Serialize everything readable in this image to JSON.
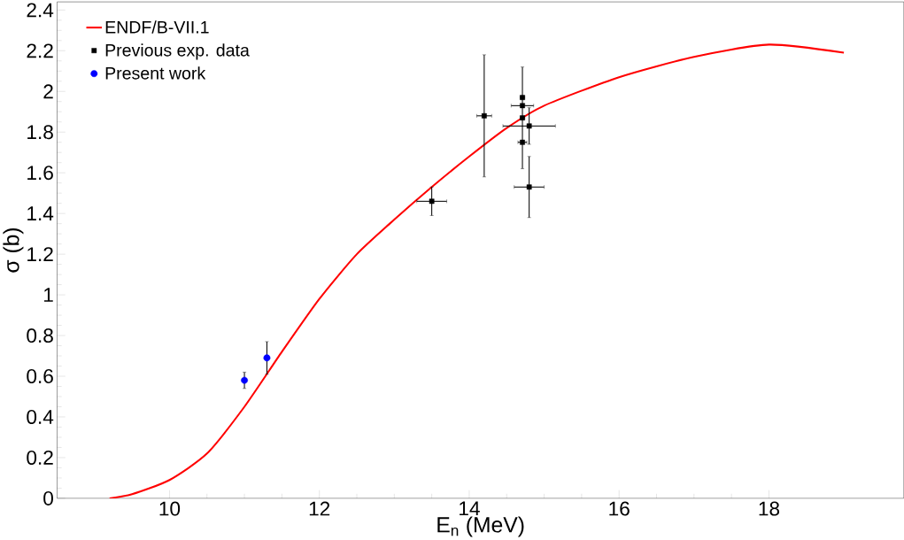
{
  "chart_data": {
    "type": "line",
    "xlabel": "E$_{n}$ (MeV)",
    "ylabel": "σ (b)",
    "xlim": [
      8.5,
      19.8
    ],
    "ylim": [
      0,
      2.44
    ],
    "xticks": [
      10,
      12,
      14,
      16,
      18
    ],
    "yticks": [
      0,
      0.2,
      0.4,
      0.6,
      0.8,
      1,
      1.2,
      1.4,
      1.6,
      1.8,
      2,
      2.2,
      2.4
    ],
    "legend": "top left",
    "grid": false,
    "series": [
      {
        "name": "ENDF/B-VII.1",
        "color": "#ff0000",
        "marker": "none",
        "line_style": "solid",
        "x": [
          9.2,
          9.5,
          10,
          10.5,
          11,
          11.5,
          12,
          12.5,
          13,
          13.5,
          14,
          14.5,
          15,
          16,
          17,
          18,
          19
        ],
        "values": [
          0,
          0.02,
          0.09,
          0.22,
          0.45,
          0.72,
          0.98,
          1.2,
          1.37,
          1.53,
          1.68,
          1.82,
          1.93,
          2.07,
          2.17,
          2.23,
          2.19
        ]
      },
      {
        "name": "Previous exp. data",
        "type": "scatter",
        "color": "#000000",
        "marker": "square",
        "x": [
          13.5,
          14.2,
          14.71,
          14.71,
          14.71,
          14.8,
          14.71,
          14.8
        ],
        "values": [
          1.46,
          1.88,
          1.97,
          1.93,
          1.87,
          1.83,
          1.75,
          1.53
        ],
        "errors": [
          0.07,
          0.3,
          null,
          null,
          0.25,
          0.09,
          null,
          0.15
        ],
        "xerrors": [
          0.2,
          0.1,
          0.03,
          0.15,
          0.03,
          0.35,
          0.06,
          0.2
        ]
      },
      {
        "name": "Present work",
        "type": "scatter",
        "color": "#0000ff",
        "marker": "circle",
        "x": [
          11.0,
          11.3
        ],
        "values": [
          0.58,
          0.69
        ],
        "errors": [
          0.04,
          0.08
        ]
      }
    ]
  }
}
